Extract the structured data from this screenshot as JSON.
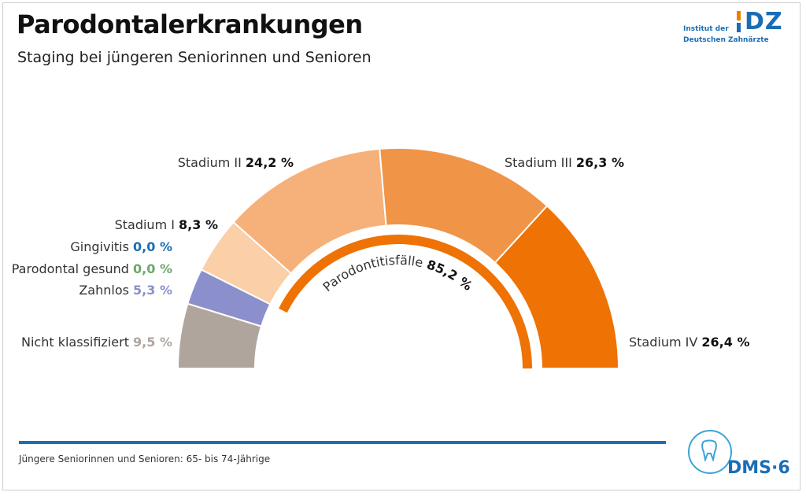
{
  "header": {
    "title": "Parodontalerkrankungen",
    "subtitle": "Staging bei jüngeren Seniorinnen und Senioren"
  },
  "logo": {
    "line1": "Institut der",
    "line2": "Deutschen Zahnärzte",
    "mark": "DZ"
  },
  "footer": {
    "note": "Jüngere Seniorinnen und Senioren: 65- bis 74-Jährige",
    "brand": "DMS·6"
  },
  "chart_data": {
    "type": "pie",
    "shape": "half-donut",
    "unit": "%",
    "slices": [
      {
        "label": "Nicht klassifiziert",
        "value": 9.5,
        "value_text": "9,5 %",
        "color": "#b0a59d",
        "value_color": "#b0a59d"
      },
      {
        "label": "Zahnlos",
        "value": 5.3,
        "value_text": "5,3 %",
        "color": "#8b8fcb",
        "value_color": "#8b8fcb"
      },
      {
        "label": "Parodontal gesund",
        "value": 0.0,
        "value_text": "0,0 %",
        "color": "#6aa86a",
        "value_color": "#6aa86a"
      },
      {
        "label": "Gingivitis",
        "value": 0.0,
        "value_text": "0,0 %",
        "color": "#1a6db5",
        "value_color": "#1a6db5"
      },
      {
        "label": "Stadium I",
        "value": 8.3,
        "value_text": "8,3 %",
        "color": "#fbcfa7",
        "value_color": "#111111"
      },
      {
        "label": "Stadium II",
        "value": 24.2,
        "value_text": "24,2 %",
        "color": "#f6b07a",
        "value_color": "#111111"
      },
      {
        "label": "Stadium III",
        "value": 26.3,
        "value_text": "26,3 %",
        "color": "#f09448",
        "value_color": "#111111"
      },
      {
        "label": "Stadium IV",
        "value": 26.4,
        "value_text": "26,4 %",
        "color": "#ee7204",
        "value_color": "#111111"
      }
    ],
    "summary": {
      "label": "Parodontitisfälle",
      "value": 85.2,
      "value_text": "85,2 %",
      "color": "#ee7204"
    }
  }
}
